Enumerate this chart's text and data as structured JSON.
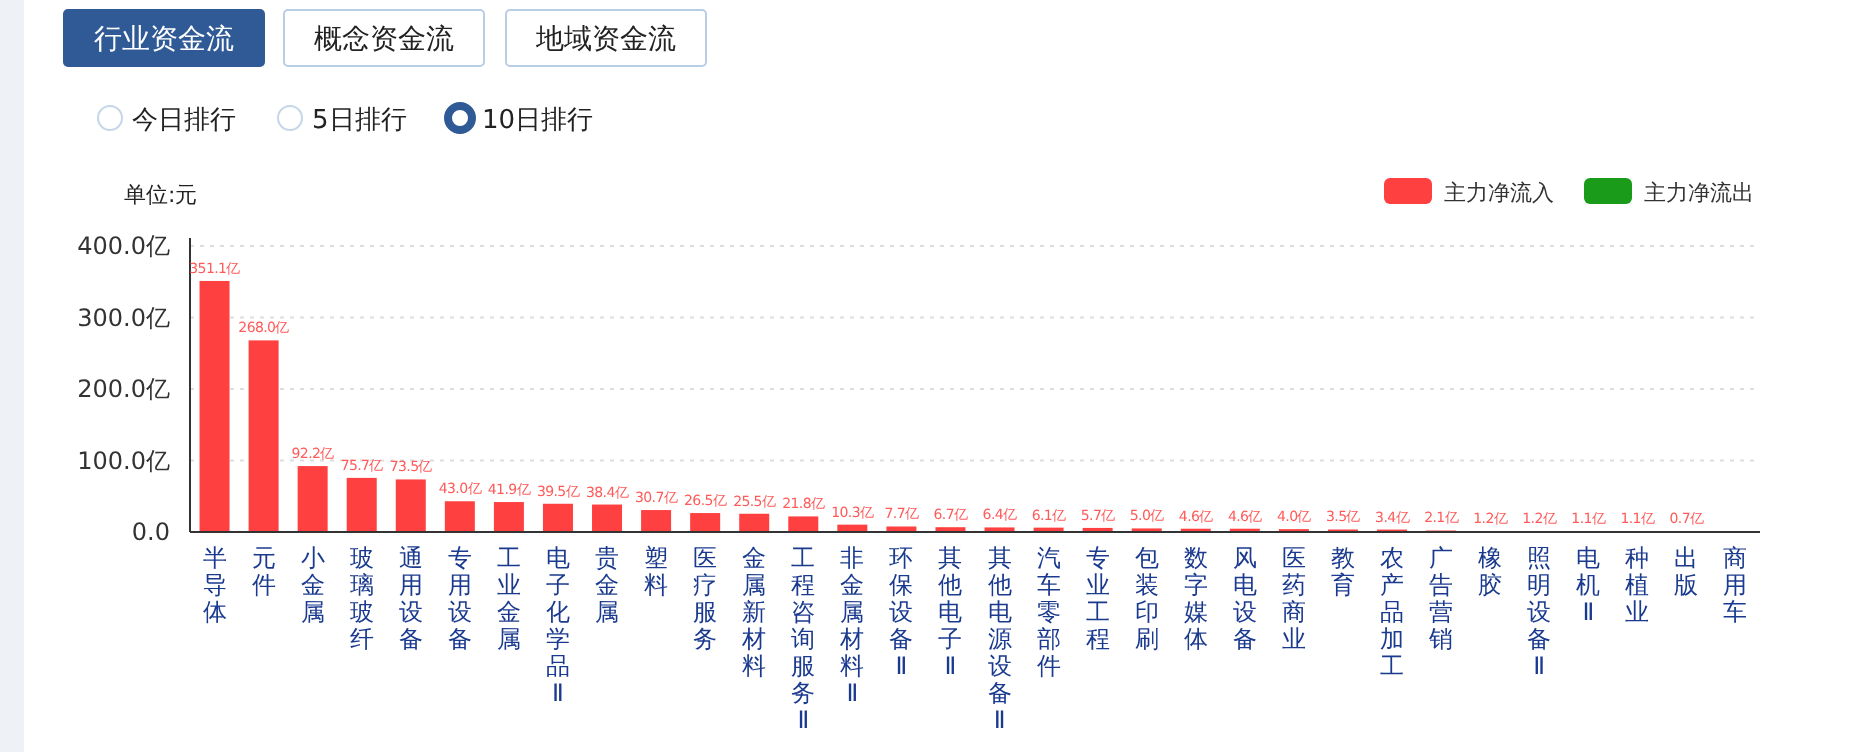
{
  "chart_data": {
    "type": "bar",
    "ylabel": "单位:元",
    "annotations": [
      "行业资金流",
      "概念资金流",
      "地域资金流",
      "今日排行",
      "5日排行",
      "10日排行"
    ],
    "categories": [
      "半导体",
      "元件",
      "小金属",
      "玻璃玻纤",
      "通用设备",
      "专用设备",
      "工业金属",
      "电子化学品Ⅱ",
      "贵金属",
      "塑料",
      "医疗服务",
      "金属新材料",
      "工程咨询服务Ⅱ",
      "非金属材料Ⅱ",
      "环保设备Ⅱ",
      "其他电子Ⅱ",
      "其他电源设备Ⅱ",
      "汽车零部件",
      "专业工程",
      "包装印刷",
      "数字媒体",
      "风电设备",
      "医药商业",
      "教育",
      "农产品加工",
      "广告营销",
      "橡胶",
      "照明设备Ⅱ",
      "电机Ⅱ",
      "种植业",
      "出版",
      "商用车"
    ],
    "series": [
      {
        "name": "主力净流入",
        "color": "#ff4040",
        "values": [
          351.1,
          268.0,
          92.2,
          75.7,
          73.5,
          43.0,
          41.9,
          39.5,
          38.4,
          30.7,
          26.5,
          25.5,
          21.8,
          10.3,
          7.7,
          6.7,
          6.4,
          6.1,
          5.7,
          5.0,
          4.6,
          4.6,
          4.0,
          3.5,
          3.4,
          2.1,
          1.2,
          1.2,
          1.1,
          1.1,
          0.7,
          null
        ],
        "value_labels": [
          "351.1亿",
          "268.0亿",
          "92.2亿",
          "75.7亿",
          "73.5亿",
          "43.0亿",
          "41.9亿",
          "39.5亿",
          "38.4亿",
          "30.7亿",
          "26.5亿",
          "25.5亿",
          "21.8亿",
          "10.3亿",
          "7.7亿",
          "6.7亿",
          "6.4亿",
          "6.1亿",
          "5.7亿",
          "5.0亿",
          "4.6亿",
          "4.6亿",
          "4.0亿",
          "3.5亿",
          "3.4亿",
          "2.1亿",
          "1.2亿",
          "1.2亿",
          "1.1亿",
          "1.1亿",
          "0.7亿",
          null
        ]
      },
      {
        "name": "主力净流出",
        "color": "#1a9b1a",
        "values": [
          null,
          null,
          null,
          null,
          null,
          null,
          null,
          null,
          null,
          null,
          null,
          null,
          null,
          null,
          null,
          null,
          null,
          null,
          null,
          null,
          null,
          null,
          null,
          null,
          null,
          null,
          null,
          null,
          null,
          null,
          null,
          null
        ]
      }
    ],
    "ylim": [
      0,
      400
    ],
    "yticks": [
      {
        "value": 0,
        "label": "0.0"
      },
      {
        "value": 100,
        "label": "100.0亿"
      },
      {
        "value": 200,
        "label": "200.0亿"
      },
      {
        "value": 300,
        "label": "300.0亿"
      },
      {
        "value": 400,
        "label": "400.0亿"
      }
    ],
    "grid": "y",
    "legend": "top right"
  }
}
